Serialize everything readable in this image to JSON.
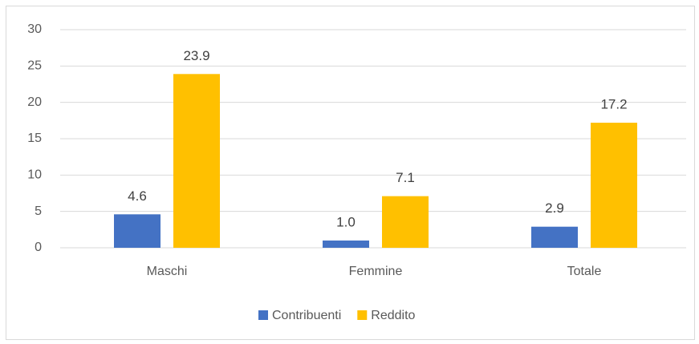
{
  "chart_data": {
    "type": "bar",
    "categories": [
      "Maschi",
      "Femmine",
      "Totale"
    ],
    "series": [
      {
        "name": "Contribuenti",
        "color": "#4472c4",
        "values": [
          4.6,
          1.0,
          2.9
        ],
        "value_labels": [
          "4.6",
          "1.0",
          "2.9"
        ]
      },
      {
        "name": "Reddito",
        "color": "#ffc000",
        "values": [
          23.9,
          7.1,
          17.2
        ],
        "value_labels": [
          "23.9",
          "7.1",
          "17.2"
        ]
      }
    ],
    "ylim": [
      0,
      30
    ],
    "yticks": [
      0,
      5,
      10,
      15,
      20,
      25,
      30
    ],
    "grid": true,
    "legend": "bottom"
  }
}
